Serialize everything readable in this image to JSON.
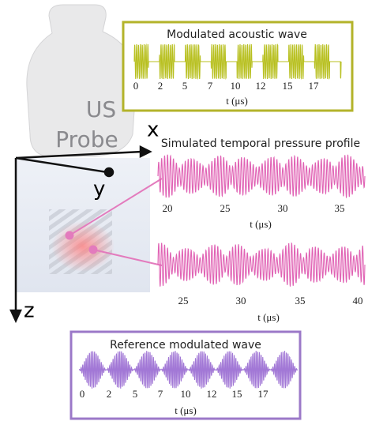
{
  "probe": {
    "line1": "US",
    "line2": "Probe"
  },
  "axes": {
    "x": "x",
    "y": "y",
    "z": "z"
  },
  "panels": [
    {
      "title": "Modulated acoustic wave",
      "ticks": [
        "0",
        "2",
        "5",
        "7",
        "10",
        "12",
        "15",
        "17"
      ],
      "xlabel": "t (μs)"
    },
    {
      "title": "Simulated temporal pressure profile",
      "ticks": [
        "20",
        "25",
        "30",
        "35"
      ],
      "xlabel": "t (μs)"
    },
    {
      "ticks": [
        "25",
        "30",
        "35",
        "40"
      ],
      "xlabel": "t (μs)"
    },
    {
      "title": "Reference modulated wave",
      "ticks": [
        "0",
        "2",
        "5",
        "7",
        "10",
        "12",
        "15",
        "17"
      ],
      "xlabel": "t (μs)"
    }
  ]
}
